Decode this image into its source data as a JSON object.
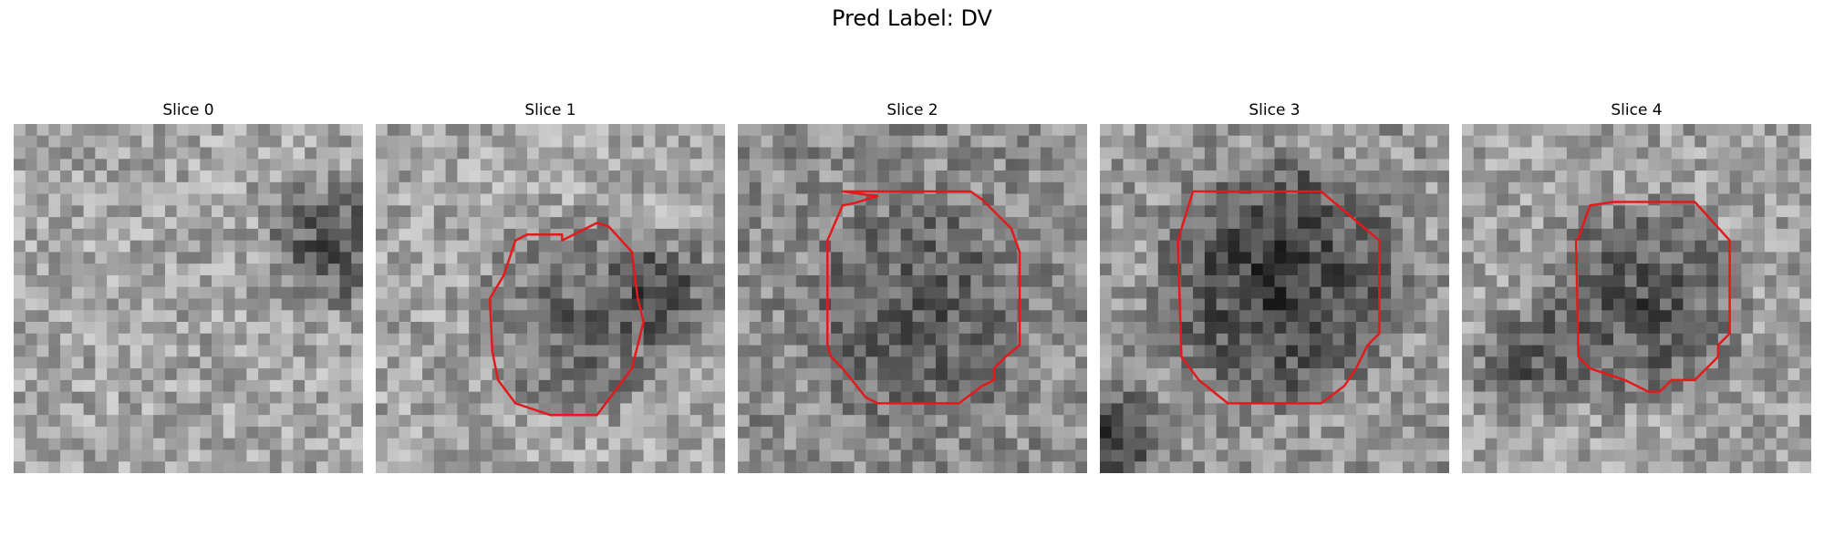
{
  "figure": {
    "title": "Pred Label: DV"
  },
  "panels": [
    {
      "title": "Slice 0",
      "has_contour": false
    },
    {
      "title": "Slice 1",
      "has_contour": true
    },
    {
      "title": "Slice 2",
      "has_contour": true
    },
    {
      "title": "Slice 3",
      "has_contour": true
    },
    {
      "title": "Slice 4",
      "has_contour": true
    }
  ],
  "colors": {
    "contour": "#e31a1c",
    "background": "#ffffff"
  }
}
